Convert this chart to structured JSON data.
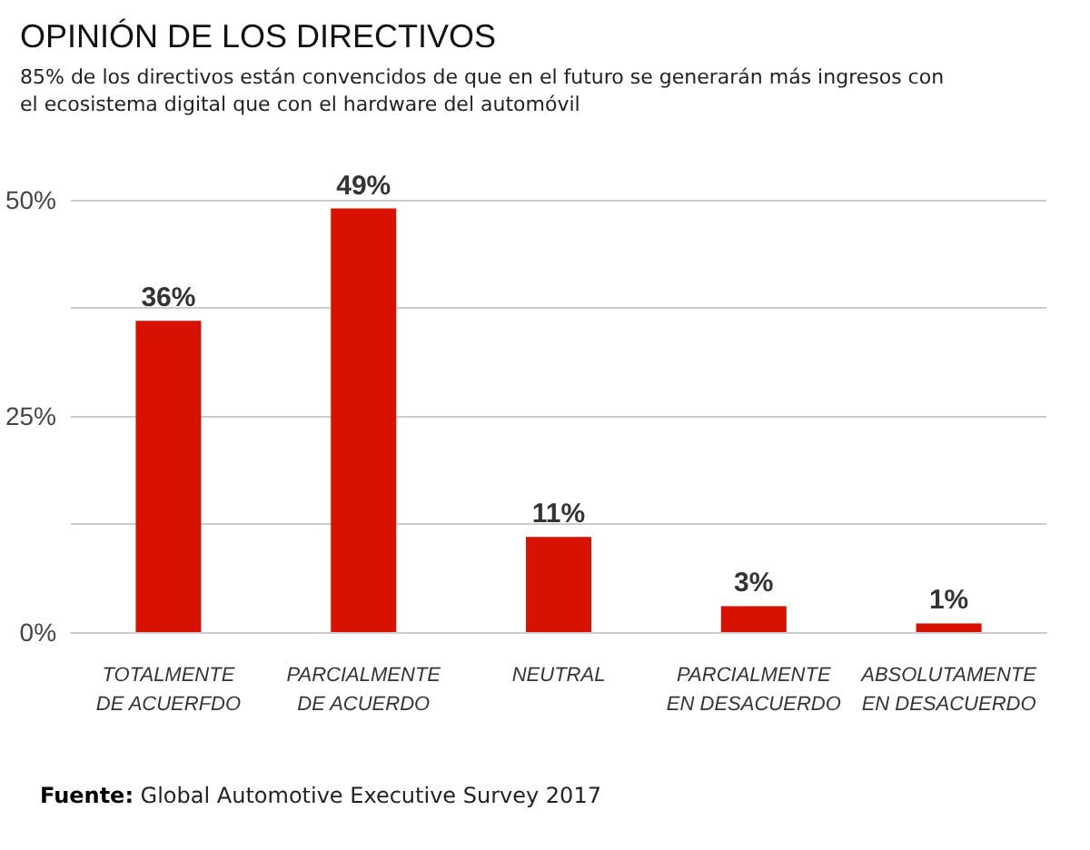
{
  "chart_data": {
    "type": "bar",
    "title": "OPINIÓN DE LOS DIRECTIVOS",
    "subtitle": "85% de los directivos están convencidos de que en el futuro se generarán más ingresos con\nel ecosistema digital que con el hardware del automóvil",
    "categories": [
      "TOTALMENTE\nDE ACUERFDO",
      "PARCIALMENTE\nDE ACUERDO",
      "NEUTRAL",
      "PARCIALMENTE\nEN DESACUERDO",
      "ABSOLUTAMENTE\nEN DESACUERDO"
    ],
    "values": [
      36,
      49,
      11,
      3,
      1
    ],
    "color": "#d71200",
    "ylim": [
      0,
      50
    ],
    "yticks": [
      {
        "value": 0,
        "label": "0%"
      },
      {
        "value": 12.5,
        "label": null
      },
      {
        "value": 25,
        "label": "25%"
      },
      {
        "value": 37.5,
        "label": null
      },
      {
        "value": 50,
        "label": "50%"
      }
    ],
    "value_labels": [
      "36%",
      "49%",
      "11%",
      "3%",
      "1%"
    ],
    "grid": "y",
    "annotations": [
      "Fuente: Global Automotive Executive Survey 2017"
    ]
  }
}
